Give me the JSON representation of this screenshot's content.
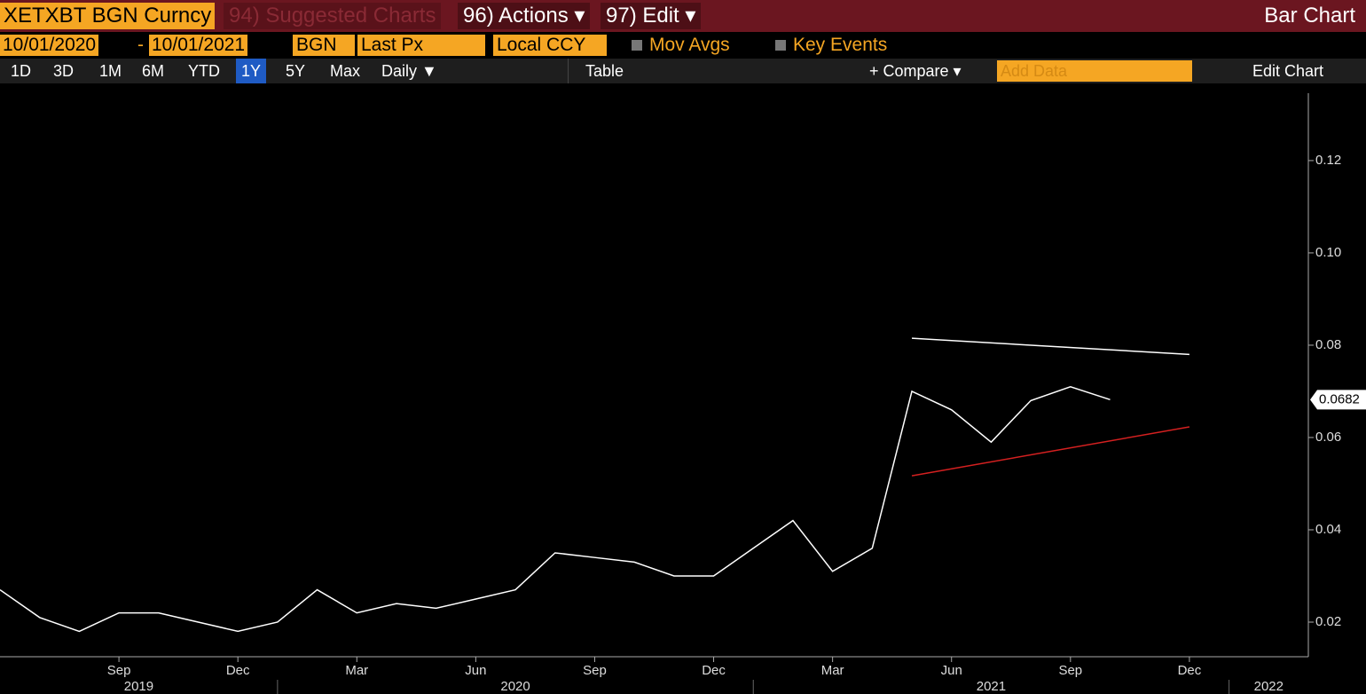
{
  "toolbar": {
    "security": "XETXBT BGN Curncy",
    "suggested": "94) Suggested Charts",
    "actions": "96) Actions ▾",
    "edit": "97) Edit ▾",
    "chart_kind": "Bar Chart",
    "start_date": "10/01/2020",
    "dash": "-",
    "end_date": "10/01/2021",
    "source": "BGN",
    "field": "Last Px",
    "currency": "Local CCY",
    "mov_avgs": "Mov Avgs",
    "key_events": "Key Events",
    "periods": [
      "1D",
      "3D",
      "1M",
      "6M",
      "YTD",
      "1Y",
      "5Y",
      "Max"
    ],
    "frequency": "Daily ▼",
    "table": "Table",
    "compare": "+ Compare ▾",
    "add_data": "Add Data",
    "edit_chart": "Edit Chart"
  },
  "chart_data": {
    "type": "line",
    "x": [
      "2019-06",
      "2019-07",
      "2019-08",
      "2019-09",
      "2019-10",
      "2019-11",
      "2019-12",
      "2020-01",
      "2020-02",
      "2020-03",
      "2020-04",
      "2020-05",
      "2020-06",
      "2020-07",
      "2020-08",
      "2020-09",
      "2020-10",
      "2020-11",
      "2020-12",
      "2021-01",
      "2021-02",
      "2021-03",
      "2021-04",
      "2021-05",
      "2021-06",
      "2021-07",
      "2021-08",
      "2021-09",
      "2021-10"
    ],
    "series": [
      {
        "color": "#ffffff",
        "values": [
          0.027,
          0.021,
          0.018,
          0.022,
          0.022,
          0.02,
          0.018,
          0.02,
          0.027,
          0.022,
          0.024,
          0.023,
          0.025,
          0.027,
          0.035,
          0.034,
          0.033,
          0.03,
          0.03,
          0.036,
          0.042,
          0.031,
          0.036,
          0.07,
          0.066,
          0.059,
          0.068,
          0.071,
          0.0682
        ]
      }
    ],
    "xlim": [
      "2019-06",
      "2022-03"
    ],
    "xticks": [
      {
        "value": "2019-09",
        "label": "Sep"
      },
      {
        "value": "2019-12",
        "label": "Dec"
      },
      {
        "value": "2020-03",
        "label": "Mar"
      },
      {
        "value": "2020-06",
        "label": "Jun"
      },
      {
        "value": "2020-09",
        "label": "Sep"
      },
      {
        "value": "2020-12",
        "label": "Dec"
      },
      {
        "value": "2021-03",
        "label": "Mar"
      },
      {
        "value": "2021-06",
        "label": "Jun"
      },
      {
        "value": "2021-09",
        "label": "Sep"
      },
      {
        "value": "2021-12",
        "label": "Dec"
      }
    ],
    "years": [
      "2019",
      "2020",
      "2021",
      "2022"
    ],
    "ylim": [
      0.0125,
      0.1346
    ],
    "yticks": [
      0.02,
      0.04,
      0.06,
      {
        "value": 0.1,
        "label": "0.10"
      },
      0.08,
      0.12
    ],
    "trend_lines": [
      {
        "color": "#ffffff",
        "x": [
          "2021-05",
          "2021-12"
        ],
        "values": [
          0.0815,
          0.078
        ]
      },
      {
        "color": "#d42020",
        "x": [
          "2021-05",
          "2021-12"
        ],
        "values": [
          0.0517,
          0.0623
        ]
      }
    ]
  }
}
